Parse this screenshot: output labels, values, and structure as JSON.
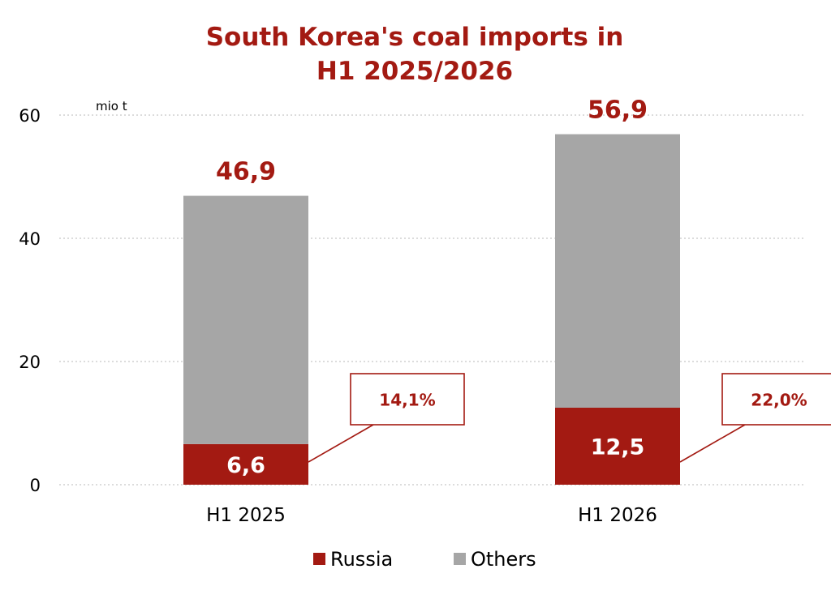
{
  "chart_data": {
    "type": "bar",
    "stacked": true,
    "title_lines": [
      "South Korea's coal imports in",
      "H1 2025/2026"
    ],
    "unit": "mio t",
    "categories": [
      "H1 2025",
      "H1 2026"
    ],
    "series": [
      {
        "name": "Russia",
        "values": [
          6.6,
          12.5
        ],
        "labels": [
          "6,6",
          "12,5"
        ],
        "color": "#a31a12"
      },
      {
        "name": "Others",
        "values": [
          40.3,
          44.4
        ],
        "color": "#a6a6a6"
      }
    ],
    "totals": [
      46.9,
      56.9
    ],
    "total_labels": [
      "46,9",
      "56,9"
    ],
    "russia_share_labels": [
      "14,1%",
      "22,0%"
    ],
    "ylim": [
      0,
      60
    ],
    "yticks": [
      0,
      20,
      40,
      60
    ],
    "grid": "horizontal-dotted",
    "legend": "bottom-center"
  },
  "colors": {
    "accent": "#a31a12",
    "others": "#a6a6a6",
    "grid": "#c8c8c8"
  }
}
